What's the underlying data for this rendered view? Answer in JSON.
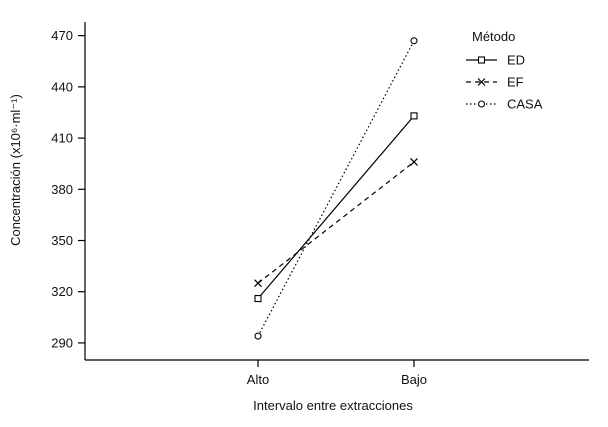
{
  "chart_data": {
    "type": "line",
    "xlabel": "Intervalo entre extracciones",
    "ylabel": "Concentración (x10⁶·ml⁻¹)",
    "categories": [
      "Alto",
      "Bajo"
    ],
    "ylim": [
      280,
      478
    ],
    "yticks": [
      290,
      320,
      350,
      380,
      410,
      440,
      470
    ],
    "grid": false,
    "legend": {
      "title": "Método",
      "placement": "top-right"
    },
    "series": [
      {
        "name": "ED",
        "values": [
          316,
          423
        ],
        "line_style": "solid",
        "marker": "square"
      },
      {
        "name": "EF",
        "values": [
          325,
          396
        ],
        "line_style": "dashed",
        "marker": "x"
      },
      {
        "name": "CASA",
        "values": [
          294,
          467
        ],
        "line_style": "dotted",
        "marker": "circle"
      }
    ]
  }
}
